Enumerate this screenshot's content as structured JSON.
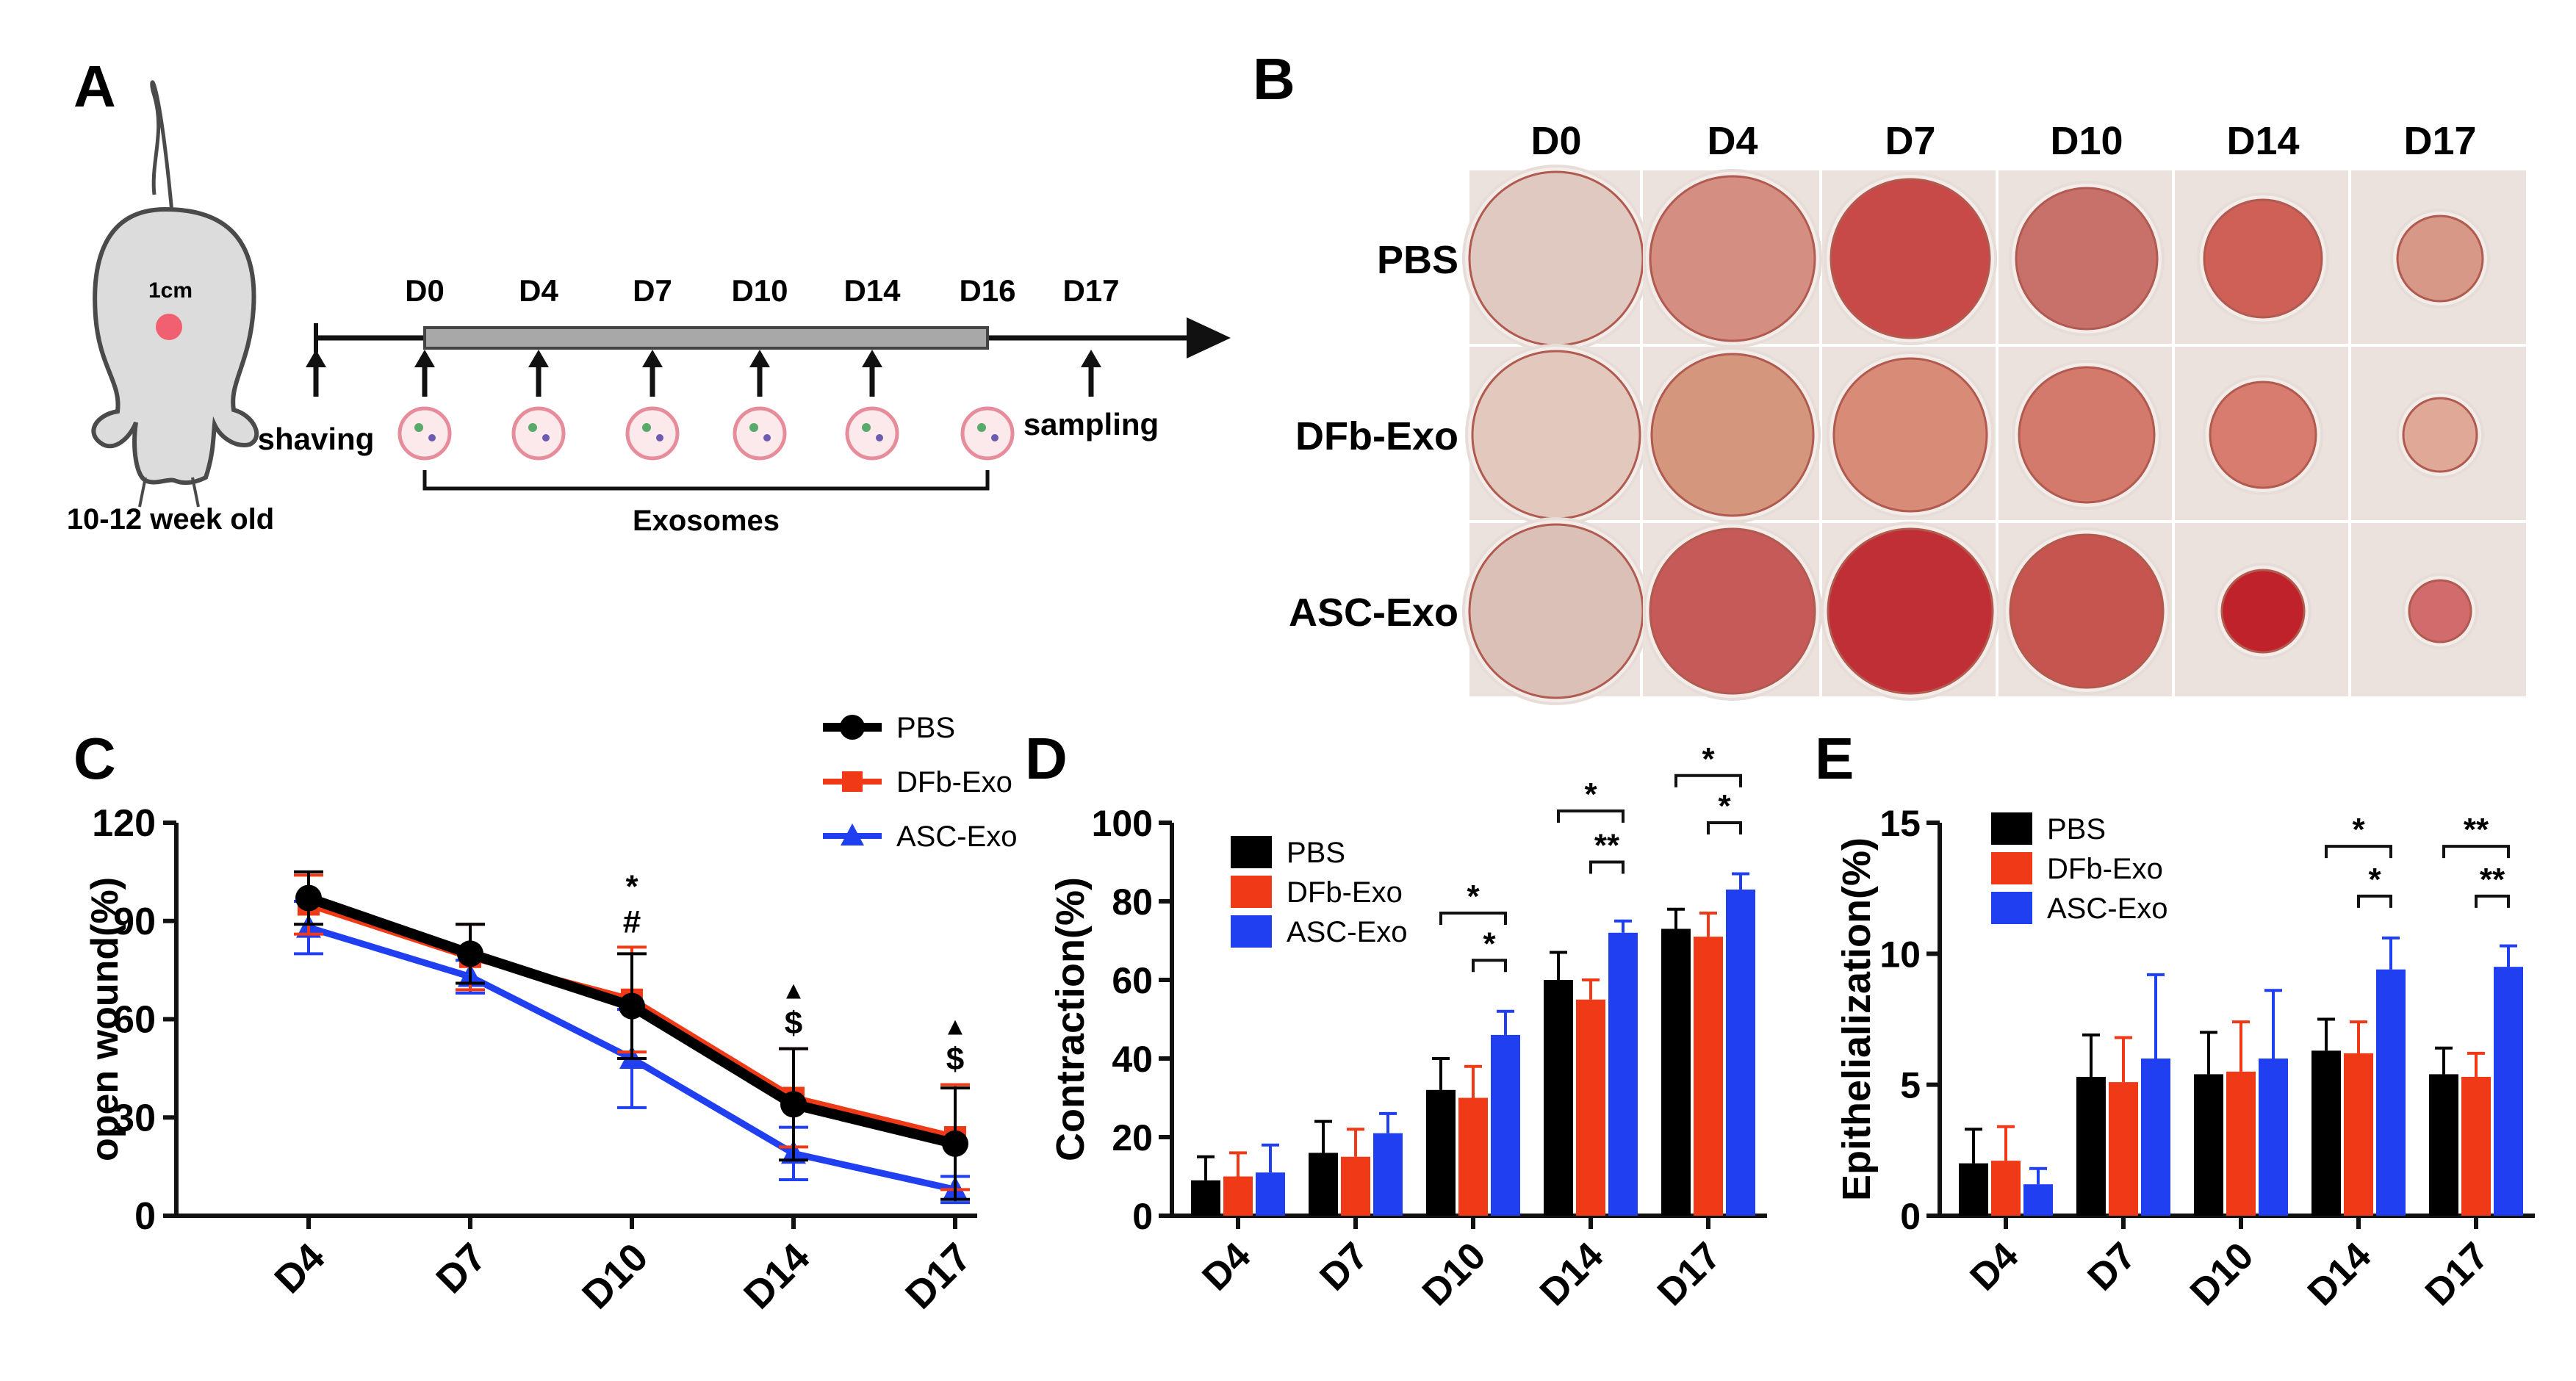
{
  "panel_labels": {
    "a": "A",
    "b": "B",
    "c": "C",
    "d": "D",
    "e": "E"
  },
  "colors": {
    "pbs": "#000000",
    "dfb": "#f03a17",
    "asc": "#1f3ff0",
    "wound_red": "#d8554c"
  },
  "panel_a": {
    "spot_label": "1cm",
    "age_label": "10-12 week old",
    "days": [
      "D0",
      "D4",
      "D7",
      "D10",
      "D14",
      "D16",
      "D17"
    ],
    "start_label": "shaving",
    "end_label": "sampling",
    "bracket_label": "Exosomes"
  },
  "panel_b": {
    "days": [
      "D0",
      "D4",
      "D7",
      "D10",
      "D14",
      "D17"
    ],
    "groups": [
      "PBS",
      "DFb-Exo",
      "ASC-Exo"
    ]
  },
  "chart_data": [
    {
      "id": "C",
      "type": "line",
      "ylabel": "open wound(%)",
      "xlabel": "",
      "ylim": [
        0,
        120
      ],
      "yticks": [
        "0",
        "30",
        "60",
        "90",
        "120"
      ],
      "categories": [
        "D4",
        "D7",
        "D10",
        "D14",
        "D17"
      ],
      "legend": [
        "PBS",
        "DFb-Exo",
        "ASC-Exo"
      ],
      "series": [
        {
          "name": "PBS",
          "values": [
            97,
            80,
            64,
            34,
            22
          ],
          "errors": [
            8,
            9,
            16,
            17,
            17
          ]
        },
        {
          "name": "DFb-Exo",
          "values": [
            95,
            79,
            66,
            36,
            24
          ],
          "errors": [
            9,
            10,
            16,
            15,
            16
          ]
        },
        {
          "name": "ASC-Exo",
          "values": [
            88,
            73,
            48,
            19,
            8
          ],
          "errors": [
            8,
            5,
            15,
            8,
            4
          ]
        }
      ],
      "annotations": [
        {
          "category": "D10",
          "lines": [
            "*",
            "#"
          ]
        },
        {
          "category": "D14",
          "lines": [
            "▲",
            "$"
          ]
        },
        {
          "category": "D17",
          "lines": [
            "▲",
            "$"
          ]
        }
      ]
    },
    {
      "id": "D",
      "type": "bar",
      "ylabel": "Contraction(%)",
      "xlabel": "",
      "ylim": [
        0,
        100
      ],
      "yticks": [
        "0",
        "20",
        "40",
        "60",
        "80",
        "100"
      ],
      "categories": [
        "D4",
        "D7",
        "D10",
        "D14",
        "D17"
      ],
      "legend": [
        "PBS",
        "DFb-Exo",
        "ASC-Exo"
      ],
      "series": [
        {
          "name": "PBS",
          "values": [
            9,
            16,
            32,
            60,
            73
          ],
          "errors": [
            6,
            8,
            8,
            7,
            5
          ]
        },
        {
          "name": "DFb-Exo",
          "values": [
            10,
            15,
            30,
            55,
            71
          ],
          "errors": [
            6,
            7,
            8,
            5,
            6
          ]
        },
        {
          "name": "ASC-Exo",
          "values": [
            11,
            21,
            46,
            72,
            83
          ],
          "errors": [
            7,
            5,
            6,
            3,
            4
          ]
        }
      ],
      "significance": [
        {
          "category": "D10",
          "from": 0,
          "to": 2,
          "y": 77,
          "label": "*"
        },
        {
          "category": "D10",
          "from": 1,
          "to": 2,
          "y": 65,
          "label": "*"
        },
        {
          "category": "D14",
          "from": 0,
          "to": 2,
          "y": 103,
          "label": "*"
        },
        {
          "category": "D14",
          "from": 1,
          "to": 2,
          "y": 90,
          "label": "**"
        },
        {
          "category": "D17",
          "from": 0,
          "to": 2,
          "y": 112,
          "label": "*"
        },
        {
          "category": "D17",
          "from": 1,
          "to": 2,
          "y": 100,
          "label": "*"
        }
      ]
    },
    {
      "id": "E",
      "type": "bar",
      "ylabel": "Epithelialization(%)",
      "xlabel": "",
      "ylim": [
        0,
        15
      ],
      "yticks": [
        "0",
        "5",
        "10",
        "15"
      ],
      "categories": [
        "D4",
        "D7",
        "D10",
        "D14",
        "D17"
      ],
      "legend": [
        "PBS",
        "DFb-Exo",
        "ASC-Exo"
      ],
      "series": [
        {
          "name": "PBS",
          "values": [
            2.0,
            5.3,
            5.4,
            6.3,
            5.4
          ],
          "errors": [
            1.3,
            1.6,
            1.6,
            1.2,
            1.0
          ]
        },
        {
          "name": "DFb-Exo",
          "values": [
            2.1,
            5.1,
            5.5,
            6.2,
            5.3
          ],
          "errors": [
            1.3,
            1.7,
            1.9,
            1.2,
            0.9
          ]
        },
        {
          "name": "ASC-Exo",
          "values": [
            1.2,
            6.0,
            6.0,
            9.4,
            9.5
          ],
          "errors": [
            0.6,
            3.2,
            2.6,
            1.2,
            0.8
          ]
        }
      ],
      "significance": [
        {
          "category": "D14",
          "from": 0,
          "to": 2,
          "y": 14.1,
          "label": "*"
        },
        {
          "category": "D14",
          "from": 1,
          "to": 2,
          "y": 12.2,
          "label": "*"
        },
        {
          "category": "D17",
          "from": 0,
          "to": 2,
          "y": 14.1,
          "label": "**"
        },
        {
          "category": "D17",
          "from": 1,
          "to": 2,
          "y": 12.2,
          "label": "**"
        }
      ]
    }
  ]
}
